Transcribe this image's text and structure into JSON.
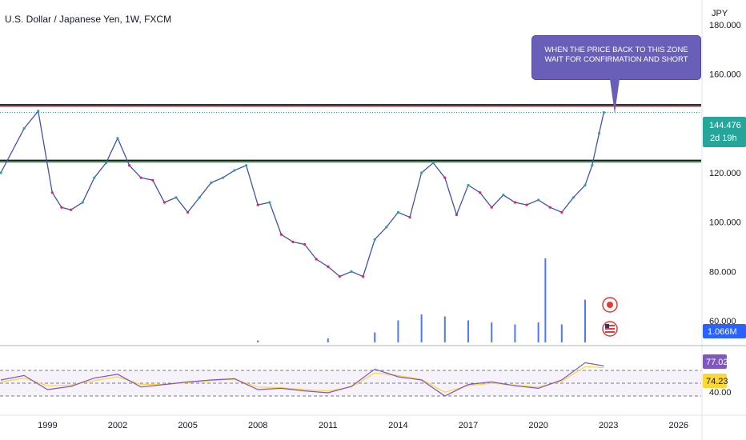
{
  "header": {
    "symbol_title": "U.S. Dollar / Japanese Yen, 1W, FXCM"
  },
  "annotation": {
    "callout_text": "WHEN THE PRICE BACK TO THIS ZONE WAIT FOR CONFIRMATION AND SHORT",
    "callout_color": "#6a5fb8"
  },
  "price_axis": {
    "currency": "JPY",
    "ticks": [
      "180.000",
      "160.000",
      "120.000",
      "100.000",
      "80.000",
      "60.000"
    ]
  },
  "badges": {
    "last_price": "144.476",
    "countdown": "2d 19h",
    "volume": "1.066M",
    "rsi_value": "77.02",
    "rsi_ma_value": "74.23",
    "rsi_level": "40.00",
    "last_price_color": "#26a69a",
    "volume_color": "#2962ff",
    "rsi_color": "#7e57c2",
    "rsi_ma_color": "#fdd835"
  },
  "time_axis": {
    "ticks": [
      "1999",
      "2002",
      "2005",
      "2008",
      "2011",
      "2014",
      "2017",
      "2020",
      "2023",
      "2026"
    ]
  },
  "chart_data": [
    {
      "type": "line",
      "series_kind": "candlestick-weekly",
      "x": [
        1997.0,
        1998.0,
        1998.6,
        1999.2,
        1999.6,
        2000.0,
        2000.5,
        2001.0,
        2001.5,
        2002.0,
        2002.5,
        2003.0,
        2003.5,
        2004.0,
        2004.5,
        2005.0,
        2005.5,
        2006.0,
        2006.5,
        2007.0,
        2007.5,
        2008.0,
        2008.5,
        2009.0,
        2009.5,
        2010.0,
        2010.5,
        2011.0,
        2011.5,
        2012.0,
        2012.5,
        2013.0,
        2013.5,
        2014.0,
        2014.5,
        2015.0,
        2015.5,
        2016.0,
        2016.5,
        2017.0,
        2017.5,
        2018.0,
        2018.5,
        2019.0,
        2019.5,
        2020.0,
        2020.5,
        2021.0,
        2021.5,
        2022.0,
        2022.3,
        2022.6,
        2022.8
      ],
      "y": [
        120,
        138,
        145,
        112,
        106,
        105,
        108,
        118,
        124,
        134,
        123,
        118,
        117,
        108,
        110,
        104,
        110,
        116,
        118,
        121,
        123,
        107,
        108,
        95,
        92,
        91,
        85,
        82,
        78,
        80,
        78,
        93,
        98,
        104,
        102,
        120,
        124,
        118,
        103,
        115,
        112,
        106,
        111,
        108,
        107,
        109,
        106,
        104,
        110,
        115,
        123,
        136,
        144.476
      ],
      "xlim": [
        1997,
        2027
      ],
      "ylim": [
        50,
        190
      ],
      "horizontal_levels": [
        147.5,
        125.0
      ],
      "yaxis_unit": "JPY"
    },
    {
      "type": "bar",
      "series_kind": "volume",
      "x": [
        2008,
        2011,
        2013,
        2014,
        2015,
        2016,
        2017,
        2018,
        2019,
        2020,
        2020.3,
        2021,
        2022
      ],
      "values": [
        0.05,
        0.1,
        0.25,
        0.55,
        0.7,
        0.65,
        0.55,
        0.5,
        0.45,
        0.5,
        2.1,
        0.45,
        1.066
      ],
      "unit": "M"
    },
    {
      "type": "line",
      "series_kind": "RSI",
      "x": [
        1997,
        1998,
        1999,
        2000,
        2001,
        2002,
        2003,
        2004,
        2005,
        2006,
        2007,
        2008,
        2009,
        2010,
        2011,
        2012,
        2013,
        2014,
        2015,
        2016,
        2017,
        2018,
        2019,
        2020,
        2021,
        2022,
        2022.8
      ],
      "y": [
        55,
        62,
        40,
        45,
        58,
        64,
        44,
        48,
        52,
        55,
        57,
        40,
        42,
        38,
        35,
        45,
        72,
        60,
        55,
        30,
        48,
        52,
        46,
        42,
        55,
        82,
        77.02
      ],
      "ma": [
        52,
        58,
        46,
        47,
        54,
        60,
        48,
        48,
        51,
        54,
        56,
        44,
        43,
        40,
        38,
        44,
        66,
        62,
        56,
        36,
        46,
        50,
        47,
        44,
        53,
        76,
        74.23
      ],
      "ylim": [
        20,
        90
      ],
      "levels": [
        70,
        50,
        30
      ]
    }
  ]
}
